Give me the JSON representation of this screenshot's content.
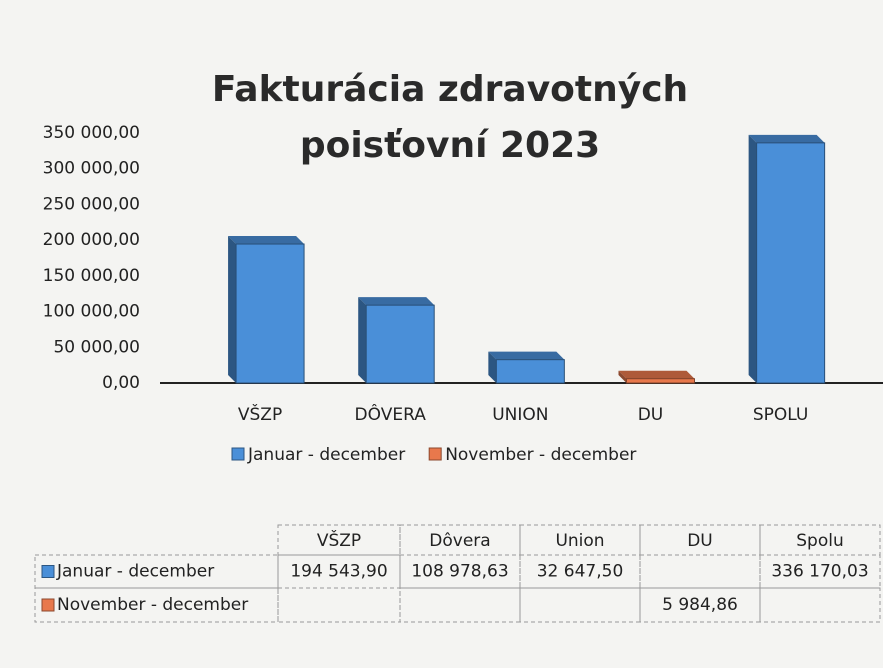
{
  "chart_data": {
    "type": "bar3d",
    "title": "Fakturácia zdravotných poisťovní 2023",
    "categories": [
      "VŠZP",
      "DÔVERA",
      "UNION",
      "DU",
      "SPOLU"
    ],
    "series": [
      {
        "name": "Januar - december",
        "color": "#4a8fd8",
        "values": [
          194543.9,
          108978.63,
          32647.5,
          null,
          336170.03
        ],
        "value_labels": [
          "194 543,90",
          "108 978,63",
          "32 647,50",
          null,
          "336 170,03"
        ]
      },
      {
        "name": "November - december",
        "color": "#e8784c",
        "values": [
          null,
          null,
          null,
          5984.86,
          null
        ],
        "value_labels": [
          null,
          null,
          null,
          "5 984,86",
          null
        ]
      }
    ],
    "table_header": [
      "VŠZP",
      "Dôvera",
      "Union",
      "DU",
      "Spolu"
    ],
    "ylim": [
      0,
      350000
    ],
    "yticks": [
      {
        "value": 0,
        "label": "0,00"
      },
      {
        "value": 50000,
        "label": "50 000,00"
      },
      {
        "value": 100000,
        "label": "100 000,00"
      },
      {
        "value": 150000,
        "label": "150 000,00"
      },
      {
        "value": 200000,
        "label": "200 000,00"
      },
      {
        "value": 250000,
        "label": "250 000,00"
      },
      {
        "value": 300000,
        "label": "300 000,00"
      },
      {
        "value": 350000,
        "label": "350 000,00"
      }
    ],
    "grid": false,
    "legend": "bottom"
  }
}
